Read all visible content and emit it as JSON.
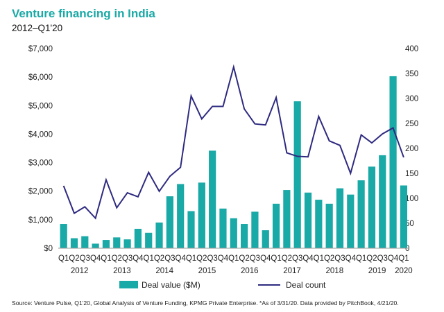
{
  "chart_data": {
    "type": "bar",
    "title": "Venture financing in India",
    "subtitle": "2012–Q1'20",
    "categories": [
      "Q1",
      "Q2",
      "Q3",
      "Q4",
      "Q1",
      "Q2",
      "Q3",
      "Q4",
      "Q1",
      "Q2",
      "Q3",
      "Q4",
      "Q1",
      "Q2",
      "Q3",
      "Q4",
      "Q1",
      "Q2",
      "Q3",
      "Q4",
      "Q1",
      "Q2",
      "Q3",
      "Q4",
      "Q1",
      "Q2",
      "Q3",
      "Q4",
      "Q1",
      "Q2",
      "Q3",
      "Q4",
      "Q1"
    ],
    "year_labels": [
      {
        "label": "2012",
        "start": 0,
        "end": 3
      },
      {
        "label": "2013",
        "start": 4,
        "end": 7
      },
      {
        "label": "2014",
        "start": 8,
        "end": 11
      },
      {
        "label": "2015",
        "start": 12,
        "end": 15
      },
      {
        "label": "2016",
        "start": 16,
        "end": 19
      },
      {
        "label": "2017",
        "start": 20,
        "end": 23
      },
      {
        "label": "2018",
        "start": 24,
        "end": 27
      },
      {
        "label": "2019",
        "start": 28,
        "end": 31
      },
      {
        "label": "2020",
        "start": 32,
        "end": 32
      }
    ],
    "series": [
      {
        "name": "Deal value ($M)",
        "type": "bar",
        "axis": "left",
        "color": "#19a9a6",
        "values": [
          850,
          350,
          420,
          160,
          290,
          380,
          310,
          680,
          540,
          900,
          1820,
          2250,
          1300,
          2300,
          3420,
          1390,
          1050,
          850,
          1280,
          630,
          1560,
          2040,
          5150,
          1950,
          1700,
          1560,
          2100,
          1880,
          2380,
          2860,
          3260,
          6030,
          2200
        ]
      },
      {
        "name": "Deal count",
        "type": "line",
        "axis": "right",
        "color": "#2e2a80",
        "values": [
          125,
          70,
          83,
          60,
          137,
          81,
          111,
          103,
          152,
          114,
          144,
          162,
          305,
          259,
          284,
          284,
          363,
          279,
          249,
          247,
          302,
          191,
          184,
          183,
          264,
          215,
          206,
          150,
          227,
          211,
          229,
          241,
          182
        ]
      }
    ],
    "y_left": {
      "min": 0,
      "max": 7000,
      "ticks": [
        "$0",
        "$1,000",
        "$2,000",
        "$3,000",
        "$4,000",
        "$5,000",
        "$6,000",
        "$7,000"
      ]
    },
    "y_right": {
      "min": 0,
      "max": 400,
      "ticks": [
        "0",
        "50",
        "100",
        "150",
        "200",
        "250",
        "300",
        "350",
        "400"
      ]
    },
    "grid": false,
    "legend_position": "bottom",
    "source": "Source: Venture Pulse, Q1'20, Global Analysis of Venture Funding, KPMG Private Enterprise. *As of 3/31/20. Data provided by PitchBook, 4/21/20."
  }
}
